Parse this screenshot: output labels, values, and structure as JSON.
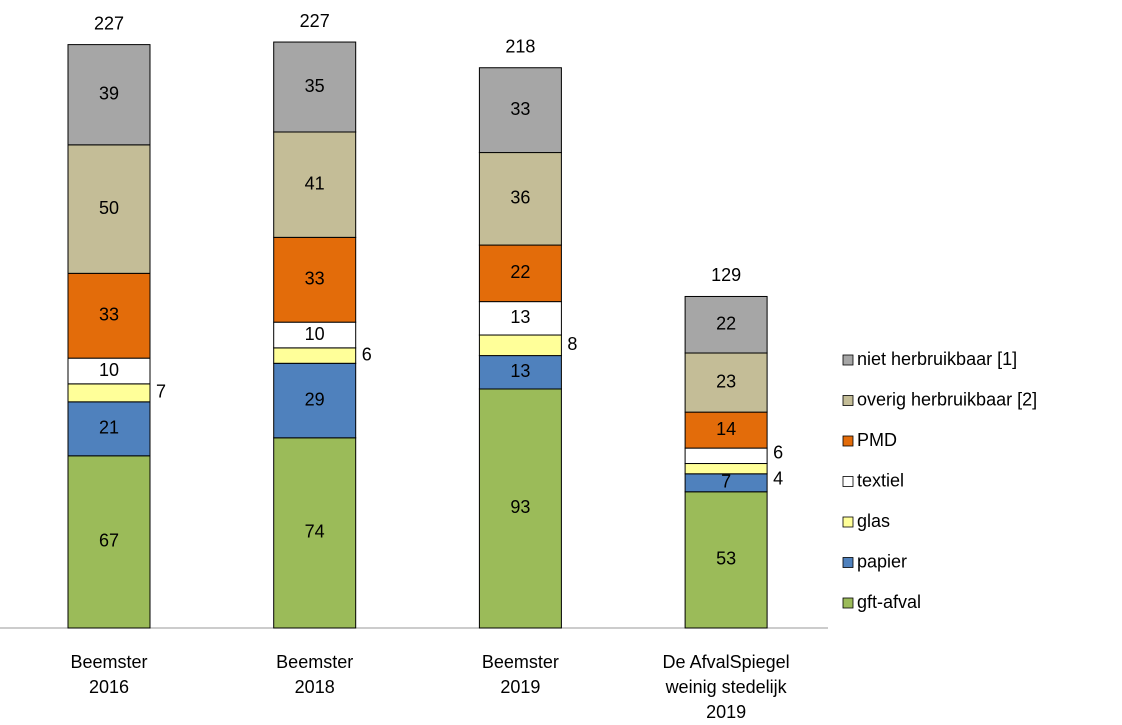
{
  "chart_data": {
    "type": "stacked_bar",
    "categories": [
      "Beemster\n2016",
      "Beemster\n2018",
      "Beemster\n2019",
      "De AfvalSpiegel\nweinig stedelijk\n2019"
    ],
    "totals": [
      227,
      227,
      218,
      129
    ],
    "series": [
      {
        "name": "gft-afval",
        "color": "#9bbb59",
        "values": [
          67,
          74,
          93,
          53
        ]
      },
      {
        "name": "papier",
        "color": "#4f81bd",
        "values": [
          21,
          29,
          13,
          7
        ]
      },
      {
        "name": "glas",
        "color": "#ffff99",
        "values": [
          7,
          6,
          8,
          4
        ]
      },
      {
        "name": "textiel",
        "color": "#ffffff",
        "values": [
          10,
          10,
          13,
          6
        ]
      },
      {
        "name": "PMD",
        "color": "#e36c0a",
        "values": [
          33,
          33,
          22,
          14
        ]
      },
      {
        "name": "overig herbruikbaar [2]",
        "color": "#c4bd97",
        "values": [
          50,
          41,
          36,
          23
        ]
      },
      {
        "name": "niet herbruikbaar [1]",
        "color": "#a6a6a6",
        "values": [
          39,
          35,
          33,
          22
        ]
      }
    ],
    "legend": "right"
  }
}
